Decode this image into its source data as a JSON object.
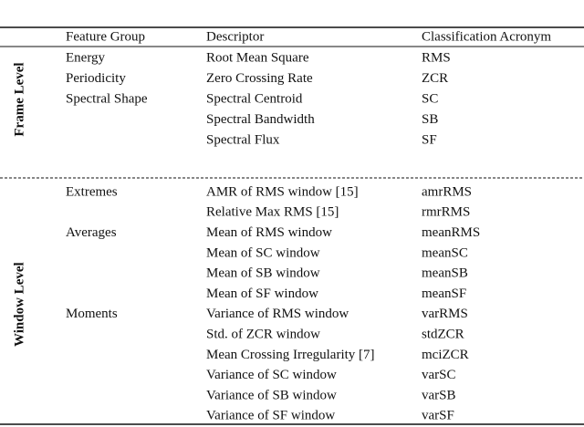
{
  "table": {
    "header": [
      "Feature Group",
      "Descriptor",
      "Classification Acronym"
    ],
    "sections": [
      {
        "label": "Frame Level",
        "rows": [
          [
            "Energy",
            "Root Mean Square",
            "RMS"
          ],
          [
            "Periodicity",
            "Zero Crossing Rate",
            "ZCR"
          ],
          [
            "Spectral Shape",
            "Spectral Centroid",
            "SC"
          ],
          [
            null,
            "Spectral Bandwidth",
            "SB"
          ],
          [
            null,
            "Spectral Flux",
            "SF"
          ]
        ]
      },
      {
        "label": "Window Level",
        "rows": [
          [
            "Extremes",
            "AMR of RMS window [15]",
            "amrRMS"
          ],
          [
            null,
            "Relative Max RMS [15]",
            "rmrRMS"
          ],
          [
            "Averages",
            "Mean of RMS window",
            "meanRMS"
          ],
          [
            null,
            "Mean of SC window",
            "meanSC"
          ],
          [
            null,
            "Mean of SB window",
            "meanSB"
          ],
          [
            null,
            "Mean of SF window",
            "meanSF"
          ],
          [
            "Moments",
            "Variance of RMS window",
            "varRMS"
          ],
          [
            null,
            "Std. of ZCR window",
            "stdZCR"
          ],
          [
            null,
            "Mean Crossing Irregularity [7]",
            "mciZCR"
          ],
          [
            null,
            "Variance of SC window",
            "varSC"
          ],
          [
            null,
            "Variance of SB window",
            "varSB"
          ],
          [
            null,
            "Variance of SF window",
            "varSF"
          ]
        ]
      }
    ]
  }
}
